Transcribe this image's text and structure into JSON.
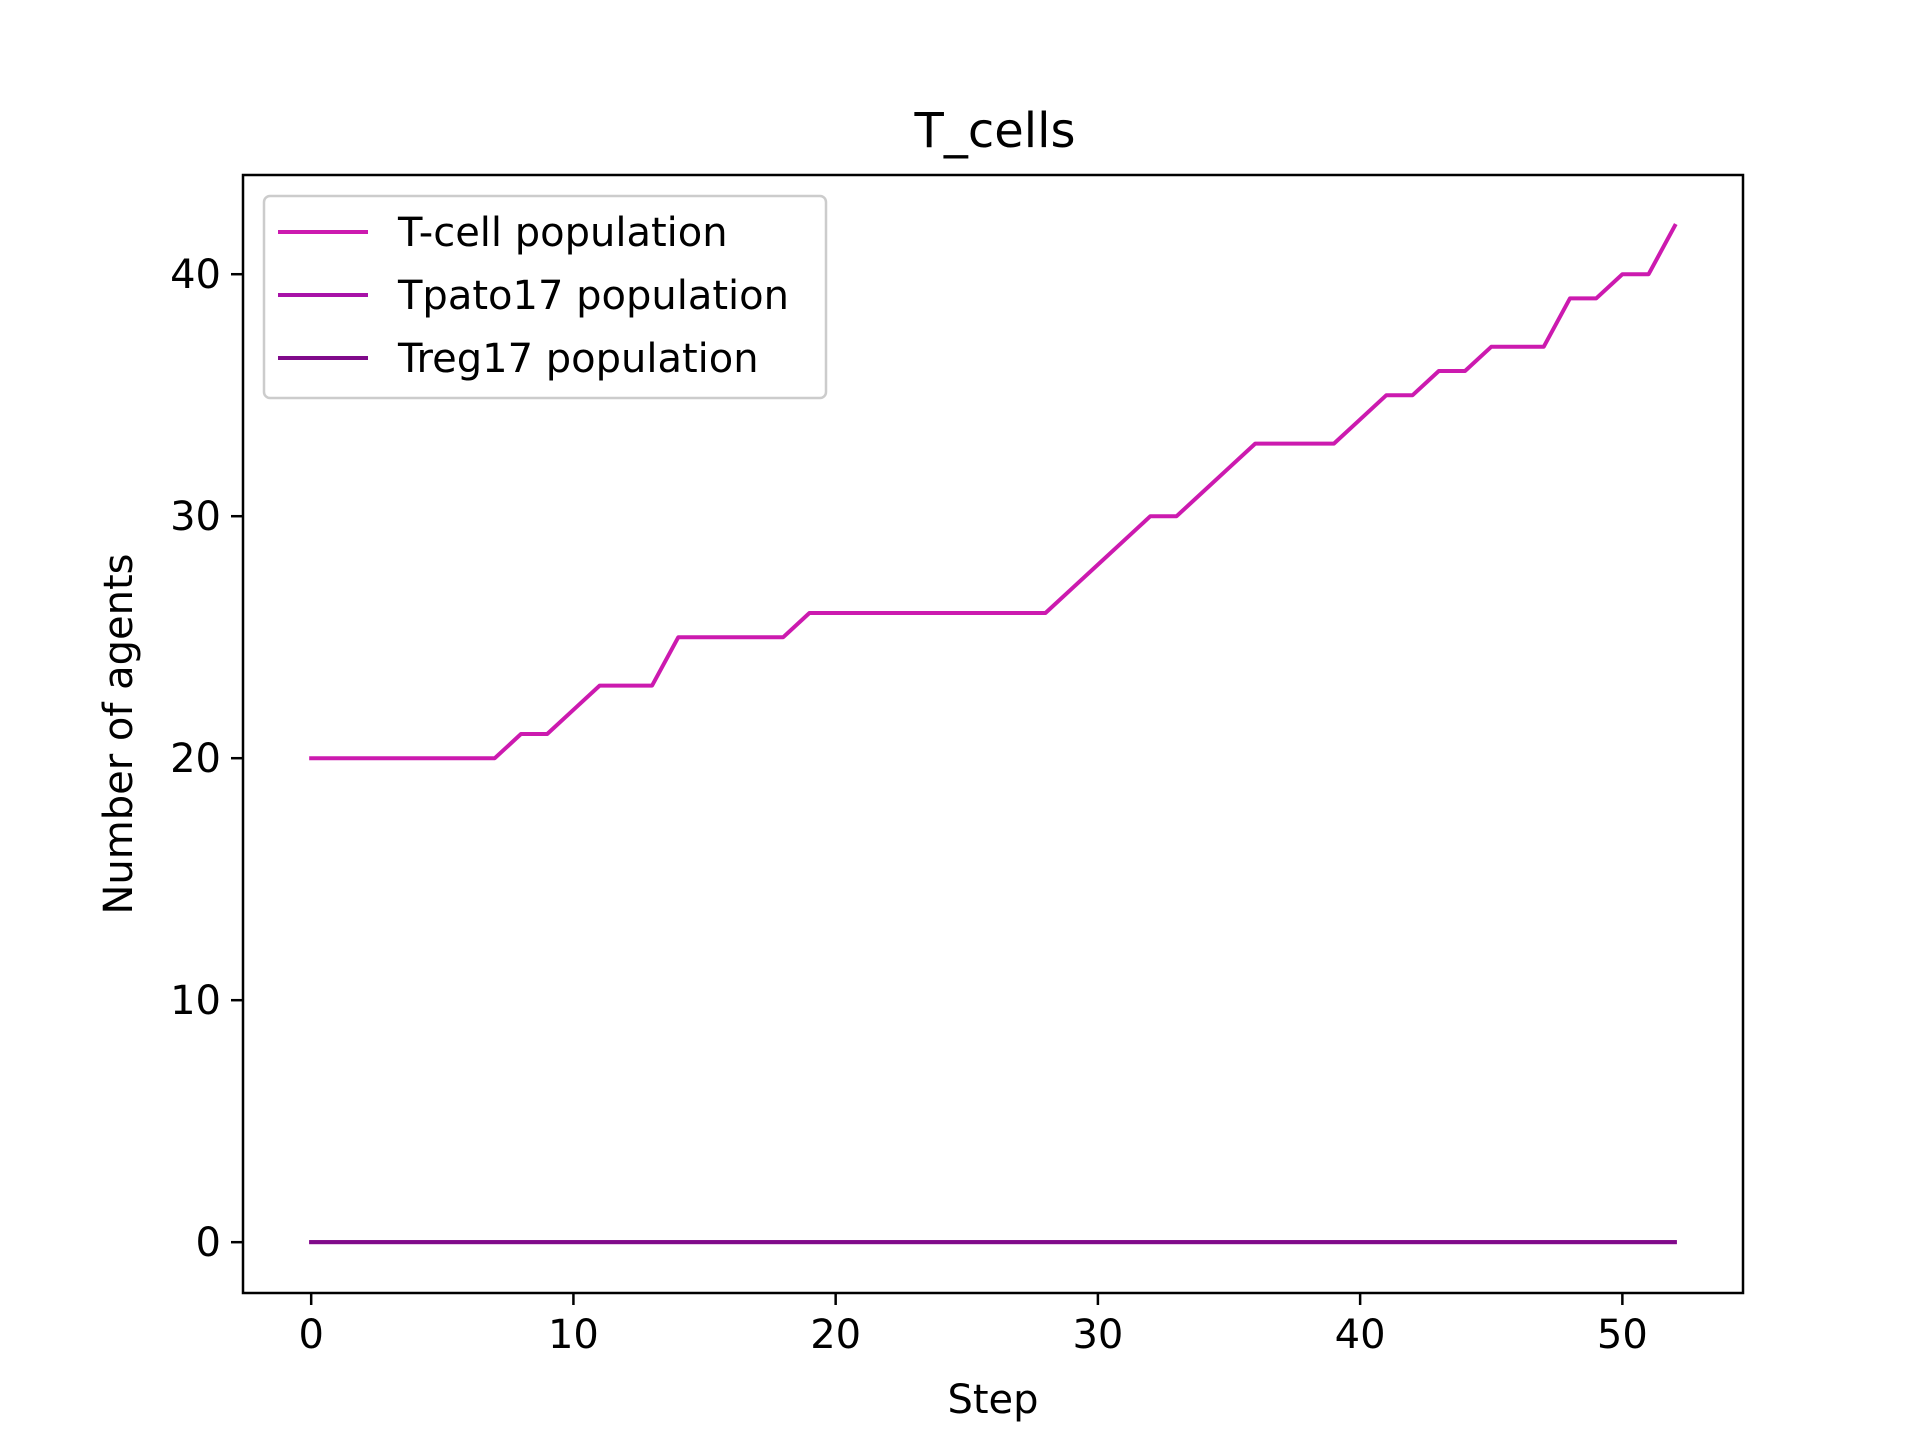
{
  "chart_data": {
    "type": "line",
    "title": "T_cells",
    "xlabel": "Step",
    "ylabel": "Number of agents",
    "xlim": [
      -2.6,
      54.6
    ],
    "ylim": [
      -2.1,
      44.1
    ],
    "xticks": [
      0,
      10,
      20,
      30,
      40,
      50
    ],
    "yticks": [
      0,
      10,
      20,
      30,
      40
    ],
    "grid": false,
    "legend_position": "upper left",
    "x": [
      0,
      1,
      2,
      3,
      4,
      5,
      6,
      7,
      8,
      9,
      10,
      11,
      12,
      13,
      14,
      15,
      16,
      17,
      18,
      19,
      20,
      21,
      22,
      23,
      24,
      25,
      26,
      27,
      28,
      29,
      30,
      31,
      32,
      33,
      34,
      35,
      36,
      37,
      38,
      39,
      40,
      41,
      42,
      43,
      44,
      45,
      46,
      47,
      48,
      49,
      50,
      51,
      52
    ],
    "series": [
      {
        "name": "T-cell population",
        "color": "#cc1aaf",
        "values": [
          20,
          20,
          20,
          20,
          20,
          20,
          20,
          20,
          21,
          21,
          22,
          23,
          23,
          23,
          25,
          25,
          25,
          25,
          25,
          26,
          26,
          26,
          26,
          26,
          26,
          26,
          26,
          26,
          26,
          27,
          28,
          29,
          30,
          30,
          31,
          32,
          33,
          33,
          33,
          33,
          34,
          35,
          35,
          36,
          36,
          37,
          37,
          37,
          39,
          39,
          40,
          40,
          42
        ]
      },
      {
        "name": "Tpato17 population",
        "color": "#a812a8",
        "values": [
          0,
          0,
          0,
          0,
          0,
          0,
          0,
          0,
          0,
          0,
          0,
          0,
          0,
          0,
          0,
          0,
          0,
          0,
          0,
          0,
          0,
          0,
          0,
          0,
          0,
          0,
          0,
          0,
          0,
          0,
          0,
          0,
          0,
          0,
          0,
          0,
          0,
          0,
          0,
          0,
          0,
          0,
          0,
          0,
          0,
          0,
          0,
          0,
          0,
          0,
          0,
          0,
          0
        ]
      },
      {
        "name": "Treg17 population",
        "color": "#800a8a",
        "values": [
          0,
          0,
          0,
          0,
          0,
          0,
          0,
          0,
          0,
          0,
          0,
          0,
          0,
          0,
          0,
          0,
          0,
          0,
          0,
          0,
          0,
          0,
          0,
          0,
          0,
          0,
          0,
          0,
          0,
          0,
          0,
          0,
          0,
          0,
          0,
          0,
          0,
          0,
          0,
          0,
          0,
          0,
          0,
          0,
          0,
          0,
          0,
          0,
          0,
          0,
          0,
          0,
          0
        ]
      }
    ]
  }
}
